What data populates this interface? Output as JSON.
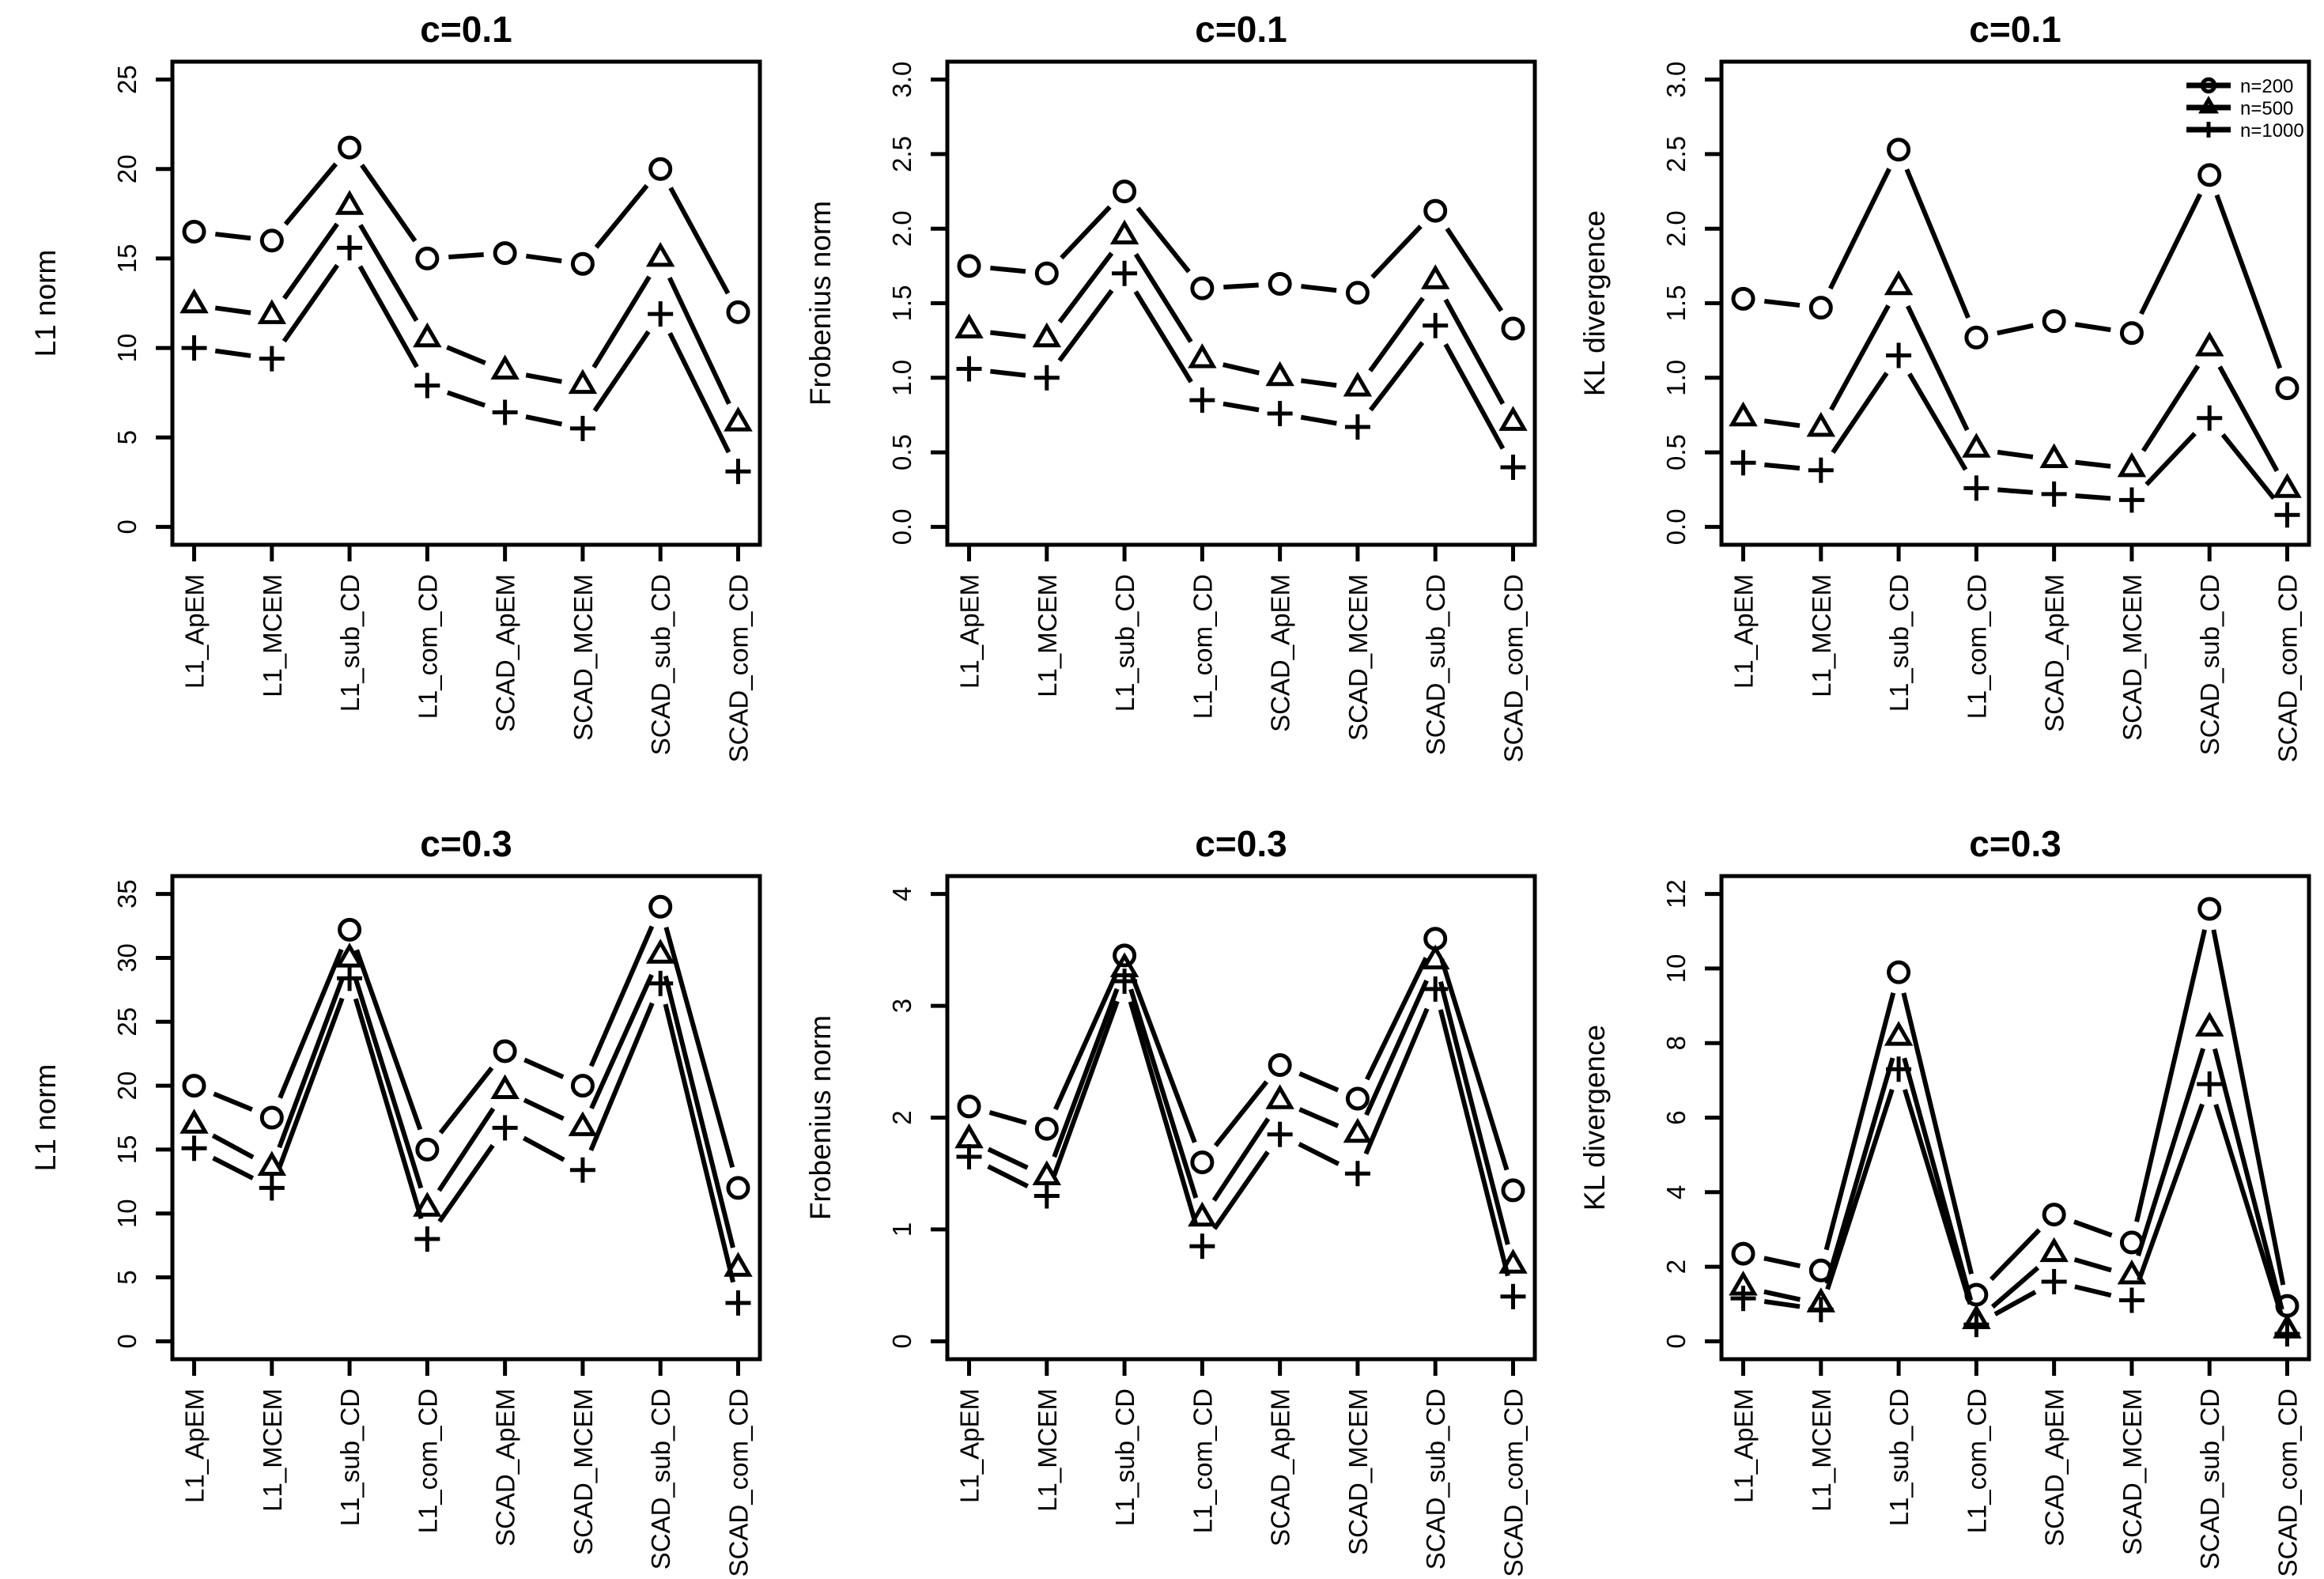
{
  "figure": {
    "background": "#ffffff",
    "line_color": "#000000",
    "grid": "off",
    "rows": 2,
    "cols": 3
  },
  "legend": {
    "position": "top-right",
    "items": [
      {
        "label": "n=200",
        "marker": "circle"
      },
      {
        "label": "n=500",
        "marker": "triangle"
      },
      {
        "label": "n=1000",
        "marker": "plus"
      }
    ]
  },
  "chart_data": [
    {
      "id": "l1norm-c01",
      "type": "line",
      "title": "c=0.1",
      "xlabel": "",
      "ylabel": "L1 norm",
      "ylim": [
        0,
        25
      ],
      "yticks": [
        0,
        5,
        10,
        15,
        20,
        25
      ],
      "ytick_labels": [
        "0",
        "5",
        "10",
        "15",
        "20",
        "25"
      ],
      "show_legend": false,
      "categories": [
        "L1_ApEM",
        "L1_MCEM",
        "L1_sub_CD",
        "L1_com_CD",
        "SCAD_ApEM",
        "SCAD_MCEM",
        "SCAD_sub_CD",
        "SCAD_com_CD"
      ],
      "series": [
        {
          "name": "n=200",
          "marker": "circle",
          "values": [
            16.5,
            16.0,
            21.2,
            15.0,
            15.3,
            14.7,
            20.0,
            12.0
          ]
        },
        {
          "name": "n=500",
          "marker": "triangle",
          "values": [
            12.4,
            11.8,
            17.9,
            10.5,
            8.7,
            7.9,
            15.0,
            5.8
          ]
        },
        {
          "name": "n=1000",
          "marker": "plus",
          "values": [
            10.0,
            9.4,
            15.6,
            7.9,
            6.4,
            5.5,
            11.9,
            3.1
          ]
        }
      ]
    },
    {
      "id": "frobenius-c01",
      "type": "line",
      "title": "c=0.1",
      "xlabel": "",
      "ylabel": "Frobenius norm",
      "ylim": [
        0,
        3
      ],
      "yticks": [
        0,
        0.5,
        1,
        1.5,
        2,
        2.5,
        3
      ],
      "ytick_labels": [
        "0.0",
        "0.5",
        "1.0",
        "1.5",
        "2.0",
        "2.5",
        "3.0"
      ],
      "show_legend": false,
      "categories": [
        "L1_ApEM",
        "L1_MCEM",
        "L1_sub_CD",
        "L1_com_CD",
        "SCAD_ApEM",
        "SCAD_MCEM",
        "SCAD_sub_CD",
        "SCAD_com_CD"
      ],
      "series": [
        {
          "name": "n=200",
          "marker": "circle",
          "values": [
            1.75,
            1.7,
            2.25,
            1.6,
            1.63,
            1.57,
            2.12,
            1.33
          ]
        },
        {
          "name": "n=500",
          "marker": "triangle",
          "values": [
            1.32,
            1.26,
            1.95,
            1.12,
            1.0,
            0.93,
            1.65,
            0.7
          ]
        },
        {
          "name": "n=1000",
          "marker": "plus",
          "values": [
            1.06,
            1.0,
            1.7,
            0.85,
            0.76,
            0.67,
            1.35,
            0.4
          ]
        }
      ]
    },
    {
      "id": "kl-c01",
      "type": "line",
      "title": "c=0.1",
      "xlabel": "",
      "ylabel": "KL divergence",
      "ylim": [
        0,
        3
      ],
      "yticks": [
        0,
        0.5,
        1,
        1.5,
        2,
        2.5,
        3
      ],
      "ytick_labels": [
        "0.0",
        "0.5",
        "1.0",
        "1.5",
        "2.0",
        "2.5",
        "3.0"
      ],
      "show_legend": true,
      "categories": [
        "L1_ApEM",
        "L1_MCEM",
        "L1_sub_CD",
        "L1_com_CD",
        "SCAD_ApEM",
        "SCAD_MCEM",
        "SCAD_sub_CD",
        "SCAD_com_CD"
      ],
      "series": [
        {
          "name": "n=200",
          "marker": "circle",
          "values": [
            1.53,
            1.47,
            2.53,
            1.27,
            1.38,
            1.3,
            2.36,
            0.93
          ]
        },
        {
          "name": "n=500",
          "marker": "triangle",
          "values": [
            0.73,
            0.66,
            1.61,
            0.52,
            0.45,
            0.39,
            1.2,
            0.25
          ]
        },
        {
          "name": "n=1000",
          "marker": "plus",
          "values": [
            0.43,
            0.38,
            1.15,
            0.26,
            0.22,
            0.18,
            0.73,
            0.08
          ]
        }
      ]
    },
    {
      "id": "l1norm-c03",
      "type": "line",
      "title": "c=0.3",
      "xlabel": "",
      "ylabel": "L1 norm",
      "ylim": [
        0,
        35
      ],
      "yticks": [
        0,
        5,
        10,
        15,
        20,
        25,
        30,
        35
      ],
      "ytick_labels": [
        "0",
        "5",
        "10",
        "15",
        "20",
        "25",
        "30",
        "35"
      ],
      "show_legend": false,
      "categories": [
        "L1_ApEM",
        "L1_MCEM",
        "L1_sub_CD",
        "L1_com_CD",
        "SCAD_ApEM",
        "SCAD_MCEM",
        "SCAD_sub_CD",
        "SCAD_com_CD"
      ],
      "series": [
        {
          "name": "n=200",
          "marker": "circle",
          "values": [
            20.0,
            17.5,
            32.2,
            15.0,
            22.7,
            20.0,
            34.0,
            12.0
          ]
        },
        {
          "name": "n=500",
          "marker": "triangle",
          "values": [
            16.9,
            13.6,
            29.9,
            10.4,
            19.6,
            16.7,
            30.2,
            5.7
          ]
        },
        {
          "name": "n=1000",
          "marker": "plus",
          "values": [
            15.1,
            12.0,
            28.4,
            8.0,
            16.7,
            13.4,
            28.0,
            3.0
          ]
        }
      ]
    },
    {
      "id": "frobenius-c03",
      "type": "line",
      "title": "c=0.3",
      "xlabel": "",
      "ylabel": "Frobenius norm",
      "ylim": [
        0,
        4
      ],
      "yticks": [
        0,
        1,
        2,
        3,
        4
      ],
      "ytick_labels": [
        "0",
        "1",
        "2",
        "3",
        "4"
      ],
      "show_legend": false,
      "categories": [
        "L1_ApEM",
        "L1_MCEM",
        "L1_sub_CD",
        "L1_com_CD",
        "SCAD_ApEM",
        "SCAD_MCEM",
        "SCAD_sub_CD",
        "SCAD_com_CD"
      ],
      "series": [
        {
          "name": "n=200",
          "marker": "circle",
          "values": [
            2.1,
            1.9,
            3.45,
            1.6,
            2.47,
            2.17,
            3.6,
            1.35
          ]
        },
        {
          "name": "n=500",
          "marker": "triangle",
          "values": [
            1.8,
            1.47,
            3.33,
            1.1,
            2.15,
            1.85,
            3.4,
            0.68
          ]
        },
        {
          "name": "n=1000",
          "marker": "plus",
          "values": [
            1.65,
            1.3,
            3.22,
            0.85,
            1.85,
            1.5,
            3.15,
            0.4
          ]
        }
      ]
    },
    {
      "id": "kl-c03",
      "type": "line",
      "title": "c=0.3",
      "xlabel": "",
      "ylabel": "KL divergence",
      "ylim": [
        0,
        12
      ],
      "yticks": [
        0,
        2,
        4,
        6,
        8,
        10,
        12
      ],
      "ytick_labels": [
        "0",
        "2",
        "4",
        "6",
        "8",
        "10",
        "12"
      ],
      "show_legend": false,
      "categories": [
        "L1_ApEM",
        "L1_MCEM",
        "L1_sub_CD",
        "L1_com_CD",
        "SCAD_ApEM",
        "SCAD_MCEM",
        "SCAD_sub_CD",
        "SCAD_com_CD"
      ],
      "series": [
        {
          "name": "n=200",
          "marker": "circle",
          "values": [
            2.35,
            1.9,
            9.9,
            1.25,
            3.4,
            2.65,
            11.6,
            0.95
          ]
        },
        {
          "name": "n=500",
          "marker": "triangle",
          "values": [
            1.45,
            1.0,
            8.15,
            0.55,
            2.35,
            1.75,
            8.4,
            0.3
          ]
        },
        {
          "name": "n=1000",
          "marker": "plus",
          "values": [
            1.15,
            0.85,
            7.3,
            0.45,
            1.6,
            1.1,
            6.9,
            0.2
          ]
        }
      ]
    }
  ]
}
